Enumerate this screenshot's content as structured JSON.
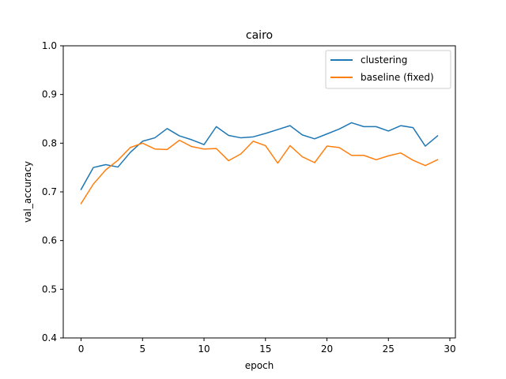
{
  "chart_data": {
    "type": "line",
    "title": "cairo",
    "xlabel": "epoch",
    "ylabel": "val_accuracy",
    "xlim": [
      -1.45,
      30.45
    ],
    "ylim": [
      0.4,
      1.0
    ],
    "xticks": [
      0,
      5,
      10,
      15,
      20,
      25,
      30
    ],
    "yticks": [
      0.4,
      0.5,
      0.6,
      0.7,
      0.8,
      0.9,
      1.0
    ],
    "grid": false,
    "legend": "upper right",
    "x": [
      0,
      1,
      2,
      3,
      4,
      5,
      6,
      7,
      8,
      9,
      10,
      11,
      12,
      13,
      14,
      15,
      16,
      17,
      18,
      19,
      20,
      21,
      22,
      23,
      24,
      25,
      26,
      27,
      28,
      29
    ],
    "series": [
      {
        "name": "clustering",
        "color": "#1f77b4",
        "values": [
          0.705,
          0.75,
          0.756,
          0.751,
          0.781,
          0.804,
          0.811,
          0.83,
          0.815,
          0.807,
          0.797,
          0.834,
          0.816,
          0.811,
          0.813,
          0.82,
          0.828,
          0.836,
          0.817,
          0.809,
          0.819,
          0.829,
          0.842,
          0.834,
          0.834,
          0.825,
          0.836,
          0.832,
          0.794,
          0.815
        ]
      },
      {
        "name": "baseline (fixed)",
        "color": "#ff7f0e",
        "values": [
          0.676,
          0.716,
          0.745,
          0.765,
          0.791,
          0.8,
          0.788,
          0.787,
          0.806,
          0.793,
          0.788,
          0.789,
          0.764,
          0.778,
          0.804,
          0.795,
          0.759,
          0.795,
          0.772,
          0.76,
          0.794,
          0.791,
          0.775,
          0.775,
          0.766,
          0.774,
          0.78,
          0.765,
          0.754,
          0.766
        ]
      }
    ]
  }
}
